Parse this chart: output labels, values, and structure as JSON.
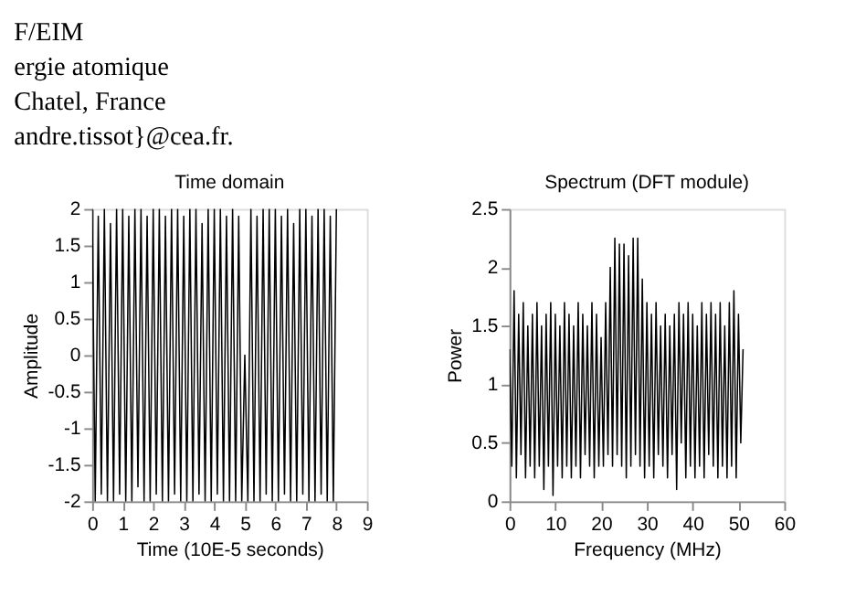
{
  "chart_data": [
    {
      "type": "line",
      "title": "Time domain",
      "xlabel": "Time (10E-5 seconds)",
      "ylabel": "Amplitude",
      "annotations": [
        "F/EIM",
        "ergie atomique",
        "Chatel, France",
        "andre.tissot}@cea.fr."
      ],
      "x": [
        0,
        0.1,
        0.2,
        0.3,
        0.4,
        0.5,
        0.6,
        0.7,
        0.8,
        0.9,
        1,
        1.1,
        1.2,
        1.3,
        1.4,
        1.5,
        1.6,
        1.7,
        1.8,
        1.9,
        2,
        2.1,
        2.2,
        2.3,
        2.4,
        2.5,
        2.6,
        2.7,
        2.8,
        2.9,
        3,
        3.1,
        3.2,
        3.3,
        3.4,
        3.5,
        3.6,
        3.7,
        3.8,
        3.9,
        4,
        4.1,
        4.2,
        4.3,
        4.4,
        4.5,
        4.6,
        4.7,
        4.8,
        4.9,
        5,
        5.1,
        5.2,
        5.3,
        5.4,
        5.5,
        5.6,
        5.7,
        5.8,
        5.9,
        6,
        6.1,
        6.2,
        6.3,
        6.4,
        6.5,
        6.6,
        6.7,
        6.8,
        6.9,
        7,
        7.1,
        7.2,
        7.3,
        7.4,
        7.5,
        7.6,
        7.7,
        7.8,
        7.9,
        8
      ],
      "series": [
        {
          "color": "#000000",
          "values": [
            2,
            -2,
            1.9,
            -1.9,
            2,
            -2,
            1.8,
            -2,
            2,
            -1.9,
            2,
            -2,
            1.9,
            -2,
            2,
            -1.8,
            2,
            -2,
            1.9,
            -2,
            2,
            -1.9,
            2,
            -2,
            1.9,
            -2,
            2,
            -1.9,
            2,
            -2,
            1.9,
            -2,
            2,
            -2,
            2,
            -1.9,
            1.8,
            -2,
            2,
            -2,
            2,
            -1.9,
            2,
            -2,
            1.9,
            -2,
            2,
            -2,
            1.9,
            -2,
            0,
            -2,
            2,
            -2,
            1.9,
            -2,
            2,
            -1.9,
            2,
            -2,
            2,
            -2,
            1.9,
            -1.9,
            2,
            -2,
            1.8,
            -2,
            2,
            -1.9,
            2,
            -2,
            1.9,
            -2,
            2,
            -1.9,
            2,
            -2,
            1.9,
            -2,
            2
          ]
        }
      ],
      "xlim": [
        0,
        9
      ],
      "xticks": [
        0,
        1,
        2,
        3,
        4,
        5,
        6,
        7,
        8,
        9
      ],
      "ylim": [
        -2,
        2
      ],
      "yticks": [
        -2,
        -1.5,
        -1,
        -0.5,
        0,
        0.5,
        1,
        1.5,
        2
      ],
      "grid": false
    },
    {
      "type": "line",
      "title": "Spectrum (DFT module)",
      "xlabel": "Frequency (MHz)",
      "ylabel": "Power",
      "x": [
        0,
        0.5,
        1,
        1.5,
        2,
        2.5,
        3,
        3.5,
        4,
        4.5,
        5,
        5.5,
        6,
        6.5,
        7,
        7.5,
        8,
        8.5,
        9,
        9.5,
        10,
        10.5,
        11,
        11.5,
        12,
        12.5,
        13,
        13.5,
        14,
        14.5,
        15,
        15.5,
        16,
        16.5,
        17,
        17.5,
        18,
        18.5,
        19,
        19.5,
        20,
        20.5,
        21,
        21.5,
        22,
        22.5,
        23,
        23.5,
        24,
        24.5,
        25,
        25.5,
        26,
        26.5,
        27,
        27.5,
        28,
        28.5,
        29,
        29.5,
        30,
        30.5,
        31,
        31.5,
        32,
        32.5,
        33,
        33.5,
        34,
        34.5,
        35,
        35.5,
        36,
        36.5,
        37,
        37.5,
        38,
        38.5,
        39,
        39.5,
        40,
        40.5,
        41,
        41.5,
        42,
        42.5,
        43,
        43.5,
        44,
        44.5,
        45,
        45.5,
        46,
        46.5,
        47,
        47.5,
        48,
        48.5,
        49,
        49.5,
        50,
        50.5,
        51
      ],
      "series": [
        {
          "color": "#000000",
          "values": [
            1.3,
            0.3,
            1.8,
            0.2,
            1.6,
            0.4,
            1.7,
            0.2,
            1.5,
            0.3,
            1.6,
            0.2,
            1.7,
            0.3,
            1.5,
            0.1,
            1.6,
            0.3,
            1.7,
            0.05,
            1.6,
            0.3,
            1.5,
            0.2,
            1.7,
            0.3,
            1.6,
            0.2,
            1.5,
            0.3,
            1.7,
            0.2,
            1.6,
            0.4,
            1.5,
            0.3,
            1.7,
            0.2,
            1.6,
            0.3,
            1.4,
            0.3,
            1.7,
            0.4,
            2.0,
            0.3,
            2.25,
            0.4,
            2.2,
            0.3,
            2.2,
            0.2,
            2.1,
            0.3,
            2.25,
            0.4,
            2.25,
            0.3,
            1.9,
            0.2,
            1.7,
            0.3,
            1.6,
            0.2,
            1.7,
            0.4,
            1.5,
            0.3,
            1.6,
            0.2,
            1.5,
            0.4,
            1.6,
            0.1,
            1.7,
            0.5,
            1.6,
            0.2,
            1.7,
            0.3,
            1.6,
            0.2,
            1.5,
            0.3,
            1.7,
            0.2,
            1.6,
            0.4,
            1.7,
            0.3,
            1.6,
            0.2,
            1.7,
            0.3,
            1.5,
            0.2,
            1.7,
            0.3,
            1.8,
            0.2,
            1.6,
            0.5,
            1.3
          ]
        }
      ],
      "xlim": [
        0,
        60
      ],
      "xticks": [
        0,
        10,
        20,
        30,
        40,
        50,
        60
      ],
      "ylim": [
        0,
        2.5
      ],
      "yticks": [
        0,
        0.5,
        1,
        1.5,
        2,
        2.5
      ],
      "grid": false
    }
  ]
}
